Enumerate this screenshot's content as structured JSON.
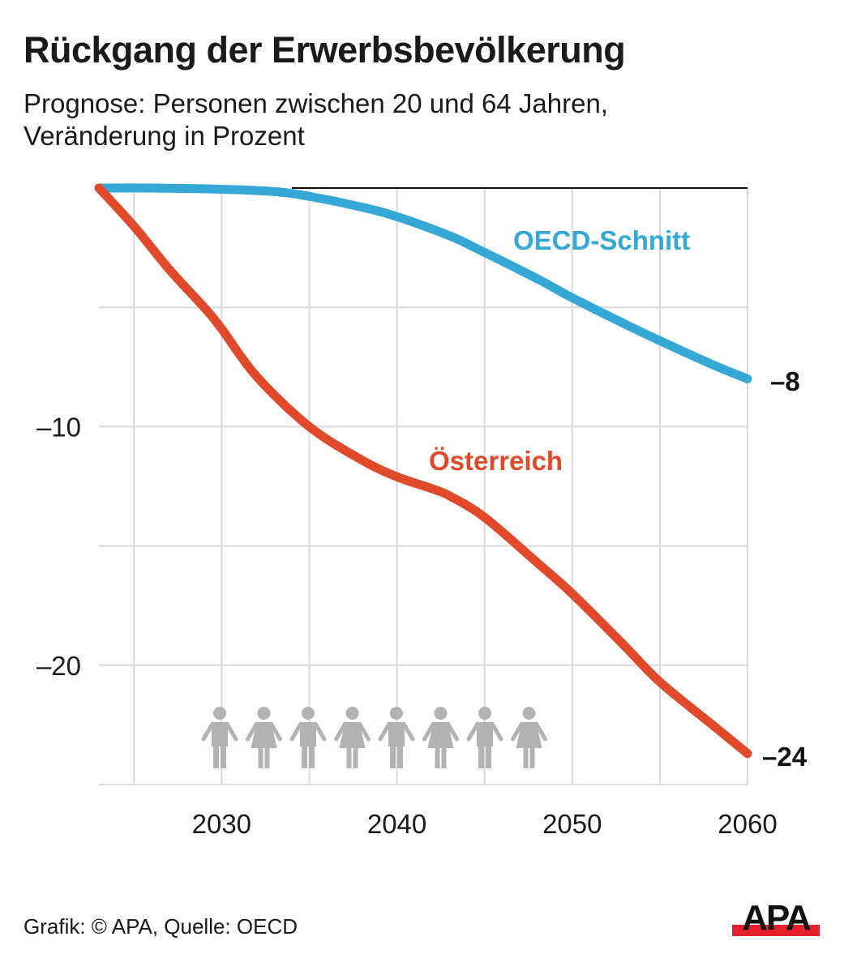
{
  "header": {
    "title": "Rückgang der Erwerbsbevölkerung",
    "subtitle_line1": "Prognose: Personen zwischen 20 und 64 Jahren,",
    "subtitle_line2": "Veränderung in Prozent"
  },
  "footer": {
    "credit": "Grafik: © APA, Quelle: OECD",
    "logo_text": "APA"
  },
  "colors": {
    "oecd": "#35a8d6",
    "austria": "#e04a2a",
    "grid": "#d9d9d9",
    "people_icons": "#b3b3b3",
    "logo_bar": "#e4202a",
    "text": "#1a1a1a"
  },
  "chart_data": {
    "type": "line",
    "title": "Rückgang der Erwerbsbevölkerung",
    "subtitle": "Prognose: Personen zwischen 20 und 64 Jahren, Veränderung in Prozent",
    "xlabel": "",
    "ylabel": "",
    "xlim": [
      2023,
      2060
    ],
    "ylim": [
      -25,
      0
    ],
    "x_ticks": [
      2030,
      2040,
      2050,
      2060
    ],
    "x_tick_labels": [
      "2030",
      "2040",
      "2050",
      "2060"
    ],
    "x_gridlines": [
      2025,
      2030,
      2035,
      2040,
      2045,
      2050,
      2055,
      2060
    ],
    "y_ticks": [
      -10,
      -20
    ],
    "y_tick_labels": [
      "–10",
      "–20"
    ],
    "y_gridlines": [
      -5,
      -10,
      -15,
      -20,
      -25
    ],
    "grid": true,
    "series": [
      {
        "name": "OECD-Schnitt",
        "color": "#35a8d6",
        "x": [
          2023,
          2026,
          2030,
          2033,
          2035,
          2038,
          2040,
          2043,
          2045,
          2048,
          2050,
          2053,
          2055,
          2058,
          2060
        ],
        "values": [
          0,
          0,
          -0.05,
          -0.15,
          -0.35,
          -0.8,
          -1.2,
          -2.0,
          -2.7,
          -3.8,
          -4.6,
          -5.7,
          -6.4,
          -7.4,
          -8.0
        ],
        "end_label": "–8",
        "label_position": "above-right"
      },
      {
        "name": "Österreich",
        "color": "#e04a2a",
        "x": [
          2023,
          2025,
          2027,
          2029,
          2030,
          2032,
          2035,
          2038,
          2040,
          2042,
          2043,
          2045,
          2048,
          2050,
          2053,
          2055,
          2058,
          2060
        ],
        "values": [
          0,
          -1.6,
          -3.4,
          -5.0,
          -5.9,
          -7.9,
          -10.0,
          -11.4,
          -12.1,
          -12.6,
          -12.9,
          -13.8,
          -15.7,
          -17.0,
          -19.2,
          -20.7,
          -22.5,
          -23.7
        ],
        "end_label": "–24",
        "label_position": "middle"
      }
    ],
    "decoration": "row of 8 grey people icons (alternating male/female) near bottom of plot"
  }
}
